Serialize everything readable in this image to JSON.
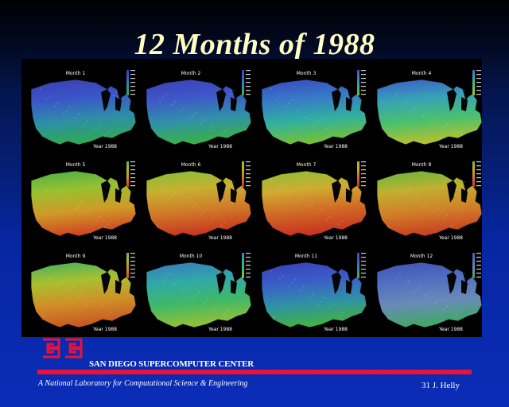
{
  "title": "12 Months of 1988",
  "maps": [
    {
      "month_label": "Month 1",
      "year_label": "Year 1988",
      "palette": [
        "#3a3fb0",
        "#3a55c8",
        "#2e8ea8",
        "#2ea858"
      ]
    },
    {
      "month_label": "Month 2",
      "year_label": "Year 1988",
      "palette": [
        "#3a40b8",
        "#3e58c8",
        "#3090aa",
        "#38b04a"
      ]
    },
    {
      "month_label": "Month 3",
      "year_label": "Year 1988",
      "palette": [
        "#3a48c0",
        "#3878c8",
        "#30b0a0",
        "#70c03a"
      ]
    },
    {
      "month_label": "Month 4",
      "year_label": "Year 1988",
      "palette": [
        "#3c5ac8",
        "#38a0b8",
        "#48c070",
        "#b0c030"
      ]
    },
    {
      "month_label": "Month 5",
      "year_label": "Year 1988",
      "palette": [
        "#48b048",
        "#98c030",
        "#d09a28",
        "#d04a22"
      ]
    },
    {
      "month_label": "Month 6",
      "year_label": "Year 1988",
      "palette": [
        "#80c038",
        "#c8b030",
        "#d07a28",
        "#c83a20"
      ]
    },
    {
      "month_label": "Month 7",
      "year_label": "Year 1988",
      "palette": [
        "#88c038",
        "#d0ac30",
        "#d06a26",
        "#c83620"
      ]
    },
    {
      "month_label": "Month 8",
      "year_label": "Year 1988",
      "palette": [
        "#60b840",
        "#c0b030",
        "#d08028",
        "#c84422"
      ]
    },
    {
      "month_label": "Month 9",
      "year_label": "Year 1988",
      "palette": [
        "#40b060",
        "#a8c030",
        "#d09028",
        "#c85a22"
      ]
    },
    {
      "month_label": "Month 10",
      "year_label": "Year 1988",
      "palette": [
        "#3a78c0",
        "#30a8a8",
        "#40b868",
        "#90c038"
      ]
    },
    {
      "month_label": "Month 11",
      "year_label": "Year 1988",
      "palette": [
        "#3a40b8",
        "#3a5cc8",
        "#3090a8",
        "#40b048"
      ]
    },
    {
      "month_label": "Month 12",
      "year_label": "Year 1988",
      "palette": [
        "#4050b8",
        "#5070c0",
        "#6a8ab8",
        "#40a868"
      ]
    }
  ],
  "logo": {
    "color": "#e8123a"
  },
  "center_name": "SAN DIEGO SUPERCOMPUTER CENTER",
  "accent_color": "#e8123a",
  "subtitle": "A National Laboratory for Computational Science & Engineering",
  "slide_number": "31 J. Helly"
}
